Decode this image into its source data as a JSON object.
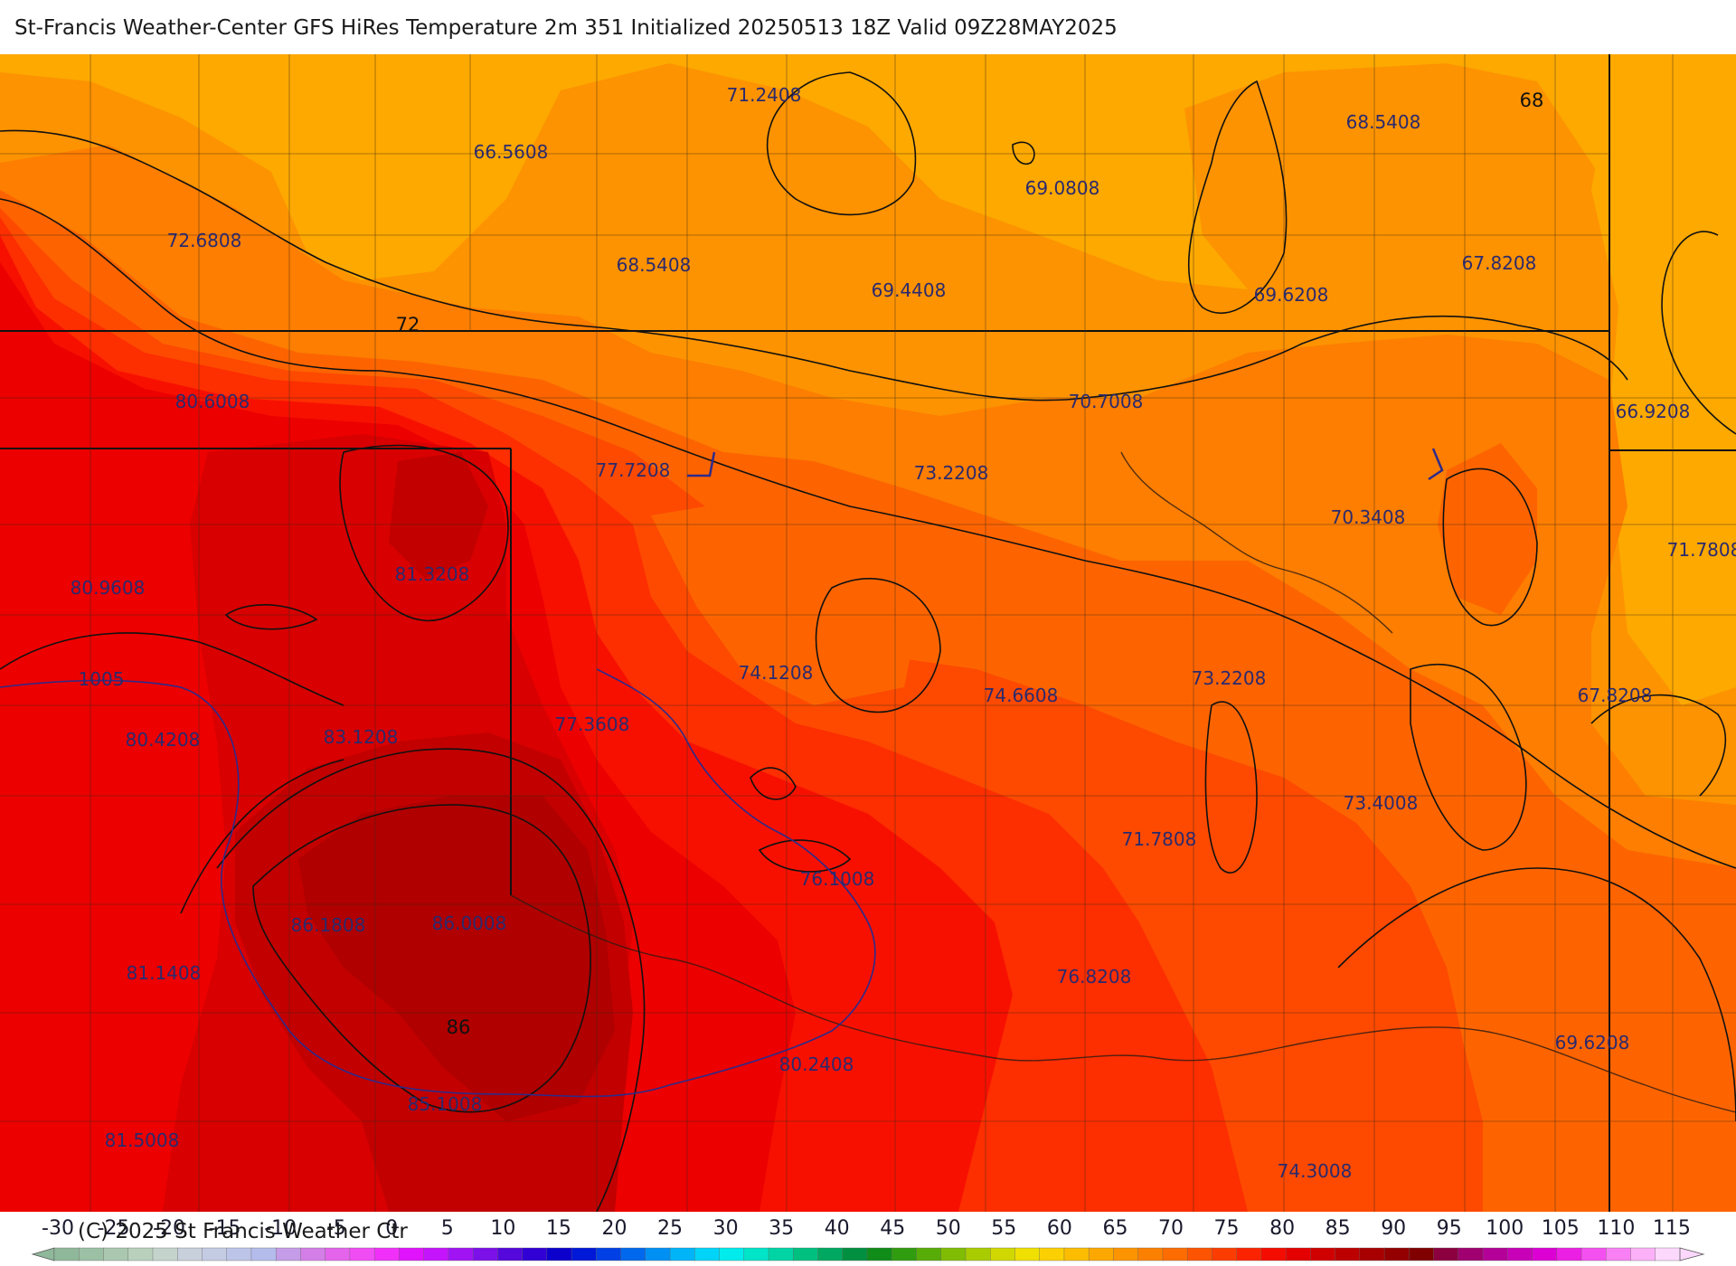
{
  "title": "St-Francis Weather-Center GFS HiRes Temperature 2m  351 Initialized 20250513 18Z Valid 09Z28MAY2025",
  "copyright": "(C) 2025 St Francis Weather Ctr",
  "colors": {
    "t66": "#fda900",
    "t68": "#fd9300",
    "t70": "#fd7e00",
    "t72": "#fd6400",
    "t74": "#fd4a00",
    "t76": "#fd2e00",
    "t78": "#f71000",
    "t80": "#ec0000",
    "t82": "#d80000",
    "t84": "#c20000",
    "t86": "#b00000",
    "contour": "#111111",
    "isobar": "#2e2a8a"
  },
  "temperature_labels": [
    {
      "id": "t1",
      "text": "71.2408"
    },
    {
      "id": "t2",
      "text": "66.5608"
    },
    {
      "id": "t3",
      "text": "68.5408"
    },
    {
      "id": "t4",
      "text": "69.0808"
    },
    {
      "id": "t5",
      "text": "72.6808"
    },
    {
      "id": "t6",
      "text": "68.5408"
    },
    {
      "id": "t7",
      "text": "69.4408"
    },
    {
      "id": "t8",
      "text": "69.6208"
    },
    {
      "id": "t9",
      "text": "67.8208"
    },
    {
      "id": "t10",
      "text": "80.6008"
    },
    {
      "id": "t11",
      "text": "70.7008"
    },
    {
      "id": "t12",
      "text": "66.9208"
    },
    {
      "id": "t13",
      "text": "77.7208"
    },
    {
      "id": "t14",
      "text": "73.2208"
    },
    {
      "id": "t15",
      "text": "70.3408"
    },
    {
      "id": "t16",
      "text": "71.7808"
    },
    {
      "id": "t17",
      "text": "81.3208"
    },
    {
      "id": "t18",
      "text": "80.9608"
    },
    {
      "id": "t19",
      "text": "74.1208"
    },
    {
      "id": "t20",
      "text": "74.6608"
    },
    {
      "id": "t21",
      "text": "73.2208"
    },
    {
      "id": "t22",
      "text": "67.8208"
    },
    {
      "id": "t23",
      "text": "77.3608"
    },
    {
      "id": "t24",
      "text": "80.4208"
    },
    {
      "id": "t25",
      "text": "83.1208"
    },
    {
      "id": "t26",
      "text": "73.4008"
    },
    {
      "id": "t27",
      "text": "71.7808"
    },
    {
      "id": "t28",
      "text": "76.1008"
    },
    {
      "id": "t29",
      "text": "86.1808"
    },
    {
      "id": "t30",
      "text": "86.0008"
    },
    {
      "id": "t31",
      "text": "81.1408"
    },
    {
      "id": "t32",
      "text": "76.8208"
    },
    {
      "id": "t33",
      "text": "69.6208"
    },
    {
      "id": "t34",
      "text": "80.2408"
    },
    {
      "id": "t35",
      "text": "85.1008"
    },
    {
      "id": "t36",
      "text": "81.5008"
    },
    {
      "id": "t37",
      "text": "74.3008"
    }
  ],
  "contour_labels": [
    {
      "id": "c72",
      "text": "72"
    },
    {
      "id": "c68",
      "text": "68"
    },
    {
      "id": "c86",
      "text": "86"
    }
  ],
  "isobar_label": "1005",
  "colorbar": {
    "ticks": [
      "-30",
      "-25",
      "-20",
      "-15",
      "-10",
      "-5",
      "0",
      "5",
      "10",
      "15",
      "20",
      "25",
      "30",
      "35",
      "40",
      "45",
      "50",
      "55",
      "60",
      "65",
      "70",
      "75",
      "80",
      "85",
      "90",
      "95",
      "100",
      "105",
      "110",
      "115"
    ],
    "colors": [
      "#8fb89a",
      "#9cc0a4",
      "#aac8b0",
      "#b8d0bc",
      "#c4d4cc",
      "#c8d0dc",
      "#c4cce4",
      "#bcc4e8",
      "#b4bcec",
      "#c49ce8",
      "#d47ee8",
      "#e464ec",
      "#f04cf4",
      "#f030f8",
      "#e014fc",
      "#c414fc",
      "#a014f4",
      "#7c10e8",
      "#5408dc",
      "#3000d4",
      "#0c00cc",
      "#0018d8",
      "#0040e4",
      "#0068ec",
      "#0090f4",
      "#00b4f8",
      "#00d4f8",
      "#00ecec",
      "#00e4c8",
      "#00d4a4",
      "#00c080",
      "#00a860",
      "#009040",
      "#108c18",
      "#309c10",
      "#58ac08",
      "#80bc04",
      "#a8cc00",
      "#d0d800",
      "#f0e000",
      "#fcd000",
      "#fcbc00",
      "#fca800",
      "#fc9400",
      "#fc8000",
      "#fc6c00",
      "#fc5400",
      "#fc3c00",
      "#fc2400",
      "#f40c00",
      "#e40000",
      "#d00000",
      "#bc0000",
      "#a80000",
      "#940000",
      "#800000",
      "#8c0040",
      "#a00070",
      "#b40098",
      "#c800b8",
      "#dc00d4",
      "#ec20e4",
      "#f450f0",
      "#f880f4",
      "#fcb0f8",
      "#fcd8fc"
    ]
  }
}
